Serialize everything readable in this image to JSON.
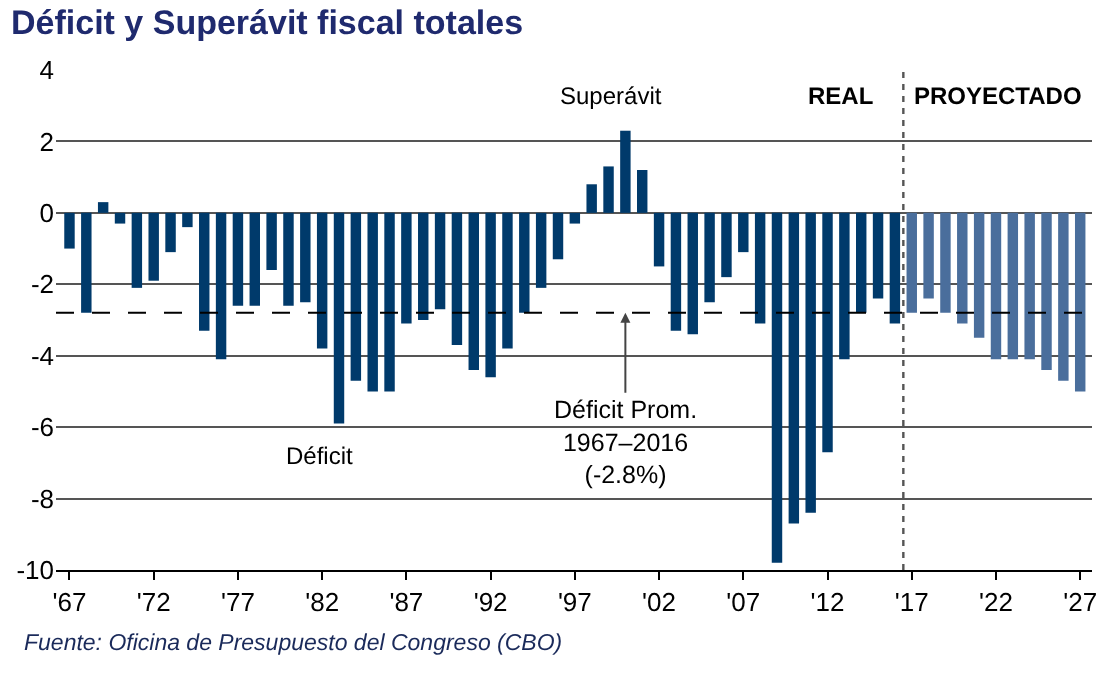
{
  "chart_data": {
    "type": "bar",
    "title": "Déficit y Superávit fiscal totales",
    "x": [
      1967,
      1968,
      1969,
      1970,
      1971,
      1972,
      1973,
      1974,
      1975,
      1976,
      1977,
      1978,
      1979,
      1980,
      1981,
      1982,
      1983,
      1984,
      1985,
      1986,
      1987,
      1988,
      1989,
      1990,
      1991,
      1992,
      1993,
      1994,
      1995,
      1996,
      1997,
      1998,
      1999,
      2000,
      2001,
      2002,
      2003,
      2004,
      2005,
      2006,
      2007,
      2008,
      2009,
      2010,
      2011,
      2012,
      2013,
      2014,
      2015,
      2016,
      2017,
      2018,
      2019,
      2020,
      2021,
      2022,
      2023,
      2024,
      2025,
      2026,
      2027
    ],
    "values": [
      -1.0,
      -2.8,
      0.3,
      -0.3,
      -2.1,
      -1.9,
      -1.1,
      -0.4,
      -3.3,
      -4.1,
      -2.6,
      -2.6,
      -1.6,
      -2.6,
      -2.5,
      -3.8,
      -5.9,
      -4.7,
      -5.0,
      -5.0,
      -3.1,
      -3.0,
      -2.7,
      -3.7,
      -4.4,
      -4.6,
      -3.8,
      -2.8,
      -2.1,
      -1.3,
      -0.3,
      0.8,
      1.3,
      2.3,
      1.2,
      -1.5,
      -3.3,
      -3.4,
      -2.5,
      -1.8,
      -1.1,
      -3.1,
      -9.8,
      -8.7,
      -8.4,
      -6.7,
      -4.1,
      -2.8,
      -2.4,
      -3.1,
      -2.8,
      -2.4,
      -2.8,
      -3.1,
      -3.5,
      -4.1,
      -4.1,
      -4.1,
      -4.4,
      -4.7,
      -5.0
    ],
    "colors": [
      "#003a6b",
      "#003a6b",
      "#003a6b",
      "#003a6b",
      "#003a6b",
      "#003a6b",
      "#003a6b",
      "#003a6b",
      "#003a6b",
      "#003a6b",
      "#003a6b",
      "#003a6b",
      "#003a6b",
      "#003a6b",
      "#003a6b",
      "#003a6b",
      "#003a6b",
      "#003a6b",
      "#003a6b",
      "#003a6b",
      "#003a6b",
      "#003a6b",
      "#003a6b",
      "#003a6b",
      "#003a6b",
      "#003a6b",
      "#003a6b",
      "#003a6b",
      "#003a6b",
      "#003a6b",
      "#003a6b",
      "#003a6b",
      "#003a6b",
      "#003a6b",
      "#003a6b",
      "#003a6b",
      "#003a6b",
      "#003a6b",
      "#003a6b",
      "#003a6b",
      "#003a6b",
      "#003a6b",
      "#003a6b",
      "#003a6b",
      "#003a6b",
      "#003a6b",
      "#003a6b",
      "#003a6b",
      "#003a6b",
      "#003a6b",
      "#4a6e9c",
      "#4a6e9c",
      "#4a6e9c",
      "#4a6e9c",
      "#4a6e9c",
      "#4a6e9c",
      "#4a6e9c",
      "#4a6e9c",
      "#4a6e9c",
      "#4a6e9c",
      "#4a6e9c"
    ],
    "xlim": [
      1966.2,
      2027.7
    ],
    "xticks": [
      {
        "value": 1967,
        "label": "'67"
      },
      {
        "value": 1972,
        "label": "'72"
      },
      {
        "value": 1977,
        "label": "'77"
      },
      {
        "value": 1982,
        "label": "'82"
      },
      {
        "value": 1987,
        "label": "'87"
      },
      {
        "value": 1992,
        "label": "'92"
      },
      {
        "value": 1997,
        "label": "'97"
      },
      {
        "value": 2002,
        "label": "'02"
      },
      {
        "value": 2007,
        "label": "'07"
      },
      {
        "value": 2012,
        "label": "'12"
      },
      {
        "value": 2017,
        "label": "'17"
      },
      {
        "value": 2022,
        "label": "'22"
      },
      {
        "value": 2027,
        "label": "'27"
      }
    ],
    "ylim": [
      -10,
      4
    ],
    "yticks": [
      -10,
      -8,
      -6,
      -4,
      -2,
      0,
      2,
      4
    ],
    "grid": "y",
    "ref_lines": [
      {
        "axis": "y",
        "value": -2.8,
        "line_style": "dashed",
        "color": "#000000"
      },
      {
        "axis": "x",
        "value": 2016.5,
        "line_style": "dotted",
        "color": "#555555"
      }
    ],
    "annotations": [
      "Superávit",
      "Déficit",
      {
        "text": "Déficit Prom.\n1967–2016\n(-2.8%)",
        "x": 2000,
        "y": -2.8
      },
      "REAL",
      "PROYECTADO",
      "Fuente: Oficina de Presupuesto del Congreso (CBO)"
    ]
  }
}
